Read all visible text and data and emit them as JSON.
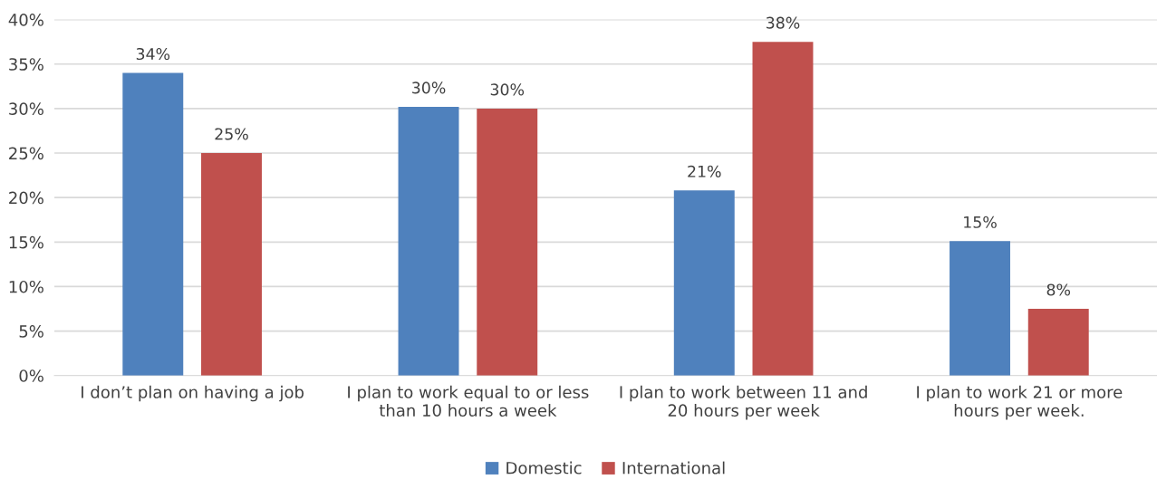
{
  "chart_data": {
    "type": "bar",
    "categories": [
      "I don’t plan on having a job",
      "I plan to work equal to or less\nthan 10 hours a week",
      "I plan to work between 11 and\n20 hours per week",
      "I plan to work 21 or more\nhours per week."
    ],
    "series": [
      {
        "name": "Domestic",
        "color": "#4f81bd",
        "values": [
          34,
          30.2,
          20.8,
          15.1
        ],
        "value_labels": [
          "34%",
          "30%",
          "21%",
          "15%"
        ]
      },
      {
        "name": "International",
        "color": "#c0504d",
        "values": [
          25,
          30,
          37.5,
          7.5
        ],
        "value_labels": [
          "25%",
          "30%",
          "38%",
          "8%"
        ]
      }
    ],
    "ylim": [
      0,
      40
    ],
    "yticks": [
      {
        "value": 0,
        "label": "0%"
      },
      {
        "value": 5,
        "label": "5%"
      },
      {
        "value": 10,
        "label": "10%"
      },
      {
        "value": 15,
        "label": "15%"
      },
      {
        "value": 20,
        "label": "20%"
      },
      {
        "value": 25,
        "label": "25%"
      },
      {
        "value": 30,
        "label": "30%"
      },
      {
        "value": 35,
        "label": "35%"
      },
      {
        "value": 40,
        "label": "40%"
      }
    ],
    "grid": "y",
    "legend": "bottom"
  }
}
